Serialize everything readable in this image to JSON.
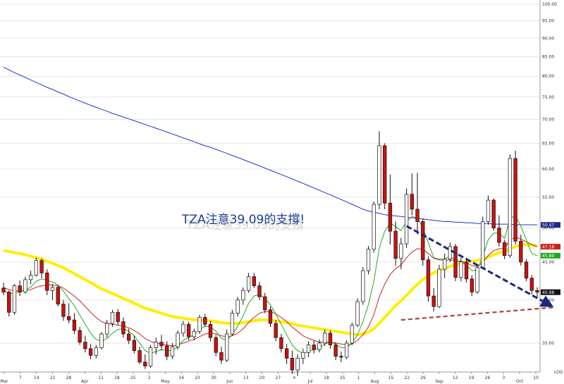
{
  "chart_data": {
    "type": "candlestick",
    "y_scale": "log",
    "ylim": [
      32,
      100
    ],
    "y_ticks": [
      "35.00",
      "40.00",
      "45.00",
      "50.00",
      "55.00",
      "60.00",
      "65.00",
      "70.00",
      "75.00",
      "80.00",
      "85.00",
      "90.00",
      "95.00",
      "100.00"
    ],
    "y_tick_values": [
      35,
      40,
      45,
      50,
      55,
      60,
      65,
      70,
      75,
      80,
      85,
      90,
      95,
      100
    ],
    "log_label": "LOG",
    "x_ticks": [
      "Mar",
      "7",
      "14",
      "21",
      "28",
      "Apr",
      "11",
      "18",
      "25",
      "2",
      "May",
      "16",
      "23",
      "30",
      "Jun",
      "13",
      "20",
      "27",
      "4",
      "Jul",
      "18",
      "25",
      "1",
      "Aug",
      "15",
      "22",
      "29",
      "Sep",
      "12",
      "19",
      "26",
      "3",
      "Oct",
      "10"
    ],
    "annotation": "TZA注意39.09的支撐!",
    "annotation_shadow": "TZA注意39.09的支撐",
    "last_value_labels": [
      {
        "value": "50.47",
        "color": "#1a2a8a"
      },
      {
        "value": "47.18",
        "color": "#cc2222"
      },
      {
        "value": "45.89",
        "color": "#22aa22"
      },
      {
        "value": "40.98",
        "color": "#111111"
      }
    ],
    "series": [
      {
        "name": "price",
        "ohlc": [
          [
            41.5,
            42.2,
            40.6,
            41.0
          ],
          [
            41.0,
            41.2,
            38.0,
            38.5
          ],
          [
            38.5,
            42.0,
            38.2,
            41.8
          ],
          [
            41.8,
            42.5,
            40.5,
            41.0
          ],
          [
            41.0,
            43.0,
            40.8,
            42.6
          ],
          [
            42.6,
            43.8,
            42.0,
            43.2
          ],
          [
            43.2,
            45.6,
            43.0,
            45.2
          ],
          [
            45.2,
            45.5,
            42.8,
            43.5
          ],
          [
            43.5,
            44.0,
            40.6,
            41.2
          ],
          [
            41.2,
            42.0,
            40.0,
            41.6
          ],
          [
            41.6,
            41.9,
            39.2,
            39.5
          ],
          [
            39.5,
            40.0,
            37.5,
            38.0
          ],
          [
            38.0,
            39.6,
            37.2,
            37.6
          ],
          [
            37.6,
            38.4,
            36.0,
            36.4
          ],
          [
            36.4,
            36.8,
            34.8,
            35.1
          ],
          [
            35.1,
            35.8,
            34.0,
            34.4
          ],
          [
            34.4,
            34.9,
            33.3,
            33.7
          ],
          [
            33.7,
            34.8,
            33.4,
            34.5
          ],
          [
            34.5,
            36.2,
            34.3,
            36.0
          ],
          [
            36.0,
            37.6,
            35.6,
            37.2
          ],
          [
            37.2,
            38.8,
            36.8,
            38.5
          ],
          [
            38.5,
            38.9,
            37.0,
            37.4
          ],
          [
            37.4,
            37.9,
            35.6,
            36.0
          ],
          [
            36.0,
            36.6,
            34.9,
            35.3
          ],
          [
            35.3,
            35.8,
            33.9,
            34.2
          ],
          [
            34.2,
            34.6,
            32.8,
            33.0
          ],
          [
            33.0,
            33.8,
            32.3,
            32.6
          ],
          [
            32.6,
            34.8,
            32.4,
            34.5
          ],
          [
            34.5,
            35.6,
            33.8,
            35.1
          ],
          [
            35.1,
            35.9,
            34.2,
            34.7
          ],
          [
            34.7,
            35.2,
            33.2,
            33.6
          ],
          [
            33.6,
            35.0,
            33.3,
            34.6
          ],
          [
            34.6,
            36.4,
            34.3,
            36.1
          ],
          [
            36.1,
            37.5,
            35.7,
            37.1
          ],
          [
            37.1,
            37.4,
            35.3,
            35.7
          ],
          [
            35.7,
            36.6,
            35.3,
            36.3
          ],
          [
            36.3,
            38.2,
            36.0,
            37.9
          ],
          [
            37.9,
            38.3,
            36.8,
            37.1
          ],
          [
            37.1,
            37.5,
            35.2,
            35.6
          ],
          [
            35.6,
            35.9,
            33.6,
            34.0
          ],
          [
            34.0,
            34.6,
            32.8,
            33.2
          ],
          [
            33.2,
            36.5,
            33.0,
            36.0
          ],
          [
            36.0,
            38.8,
            35.8,
            38.4
          ],
          [
            38.4,
            40.4,
            38.0,
            40.0
          ],
          [
            40.0,
            41.6,
            39.4,
            41.2
          ],
          [
            41.2,
            43.5,
            40.9,
            43.0
          ],
          [
            43.0,
            43.5,
            41.5,
            41.8
          ],
          [
            41.8,
            42.3,
            40.0,
            40.4
          ],
          [
            40.4,
            40.9,
            38.4,
            38.8
          ],
          [
            38.8,
            39.2,
            36.8,
            37.2
          ],
          [
            37.2,
            37.6,
            35.2,
            35.6
          ],
          [
            35.6,
            36.0,
            34.0,
            34.4
          ],
          [
            34.4,
            34.9,
            32.8,
            33.4
          ],
          [
            33.4,
            34.2,
            31.8,
            32.2
          ],
          [
            32.2,
            33.8,
            31.6,
            33.4
          ],
          [
            33.4,
            34.4,
            32.8,
            34.0
          ],
          [
            34.0,
            35.2,
            33.5,
            34.8
          ],
          [
            34.8,
            35.3,
            33.9,
            34.3
          ],
          [
            34.3,
            35.4,
            34.0,
            35.0
          ],
          [
            35.0,
            36.5,
            34.7,
            36.1
          ],
          [
            36.1,
            36.4,
            34.4,
            34.8
          ],
          [
            34.8,
            35.1,
            33.2,
            33.6
          ],
          [
            33.6,
            34.1,
            33.0,
            33.5
          ],
          [
            33.5,
            35.3,
            33.3,
            35.0
          ],
          [
            35.0,
            37.3,
            34.8,
            37.0
          ],
          [
            37.0,
            40.2,
            36.8,
            39.8
          ],
          [
            39.8,
            44.3,
            39.4,
            43.8
          ],
          [
            43.8,
            47.3,
            43.3,
            46.8
          ],
          [
            46.8,
            54.3,
            46.3,
            53.8
          ],
          [
            53.8,
            67.5,
            53.0,
            64.5
          ],
          [
            64.5,
            65.0,
            53.0,
            54.0
          ],
          [
            54.0,
            59.0,
            47.5,
            49.5
          ],
          [
            49.5,
            51.0,
            44.5,
            45.5
          ],
          [
            45.5,
            48.5,
            44.0,
            47.6
          ],
          [
            47.6,
            56.5,
            47.0,
            55.5
          ],
          [
            55.5,
            59.2,
            52.0,
            53.0
          ],
          [
            53.0,
            59.3,
            49.0,
            51.0
          ],
          [
            51.0,
            51.5,
            44.5,
            45.3
          ],
          [
            45.3,
            45.8,
            39.8,
            40.5
          ],
          [
            40.5,
            41.5,
            38.6,
            39.2
          ],
          [
            39.2,
            44.6,
            39.0,
            44.0
          ],
          [
            44.0,
            46.2,
            42.8,
            45.4
          ],
          [
            45.4,
            47.8,
            45.0,
            47.2
          ],
          [
            47.2,
            47.6,
            42.4,
            42.9
          ],
          [
            42.9,
            45.6,
            42.4,
            45.0
          ],
          [
            45.0,
            45.6,
            42.2,
            42.7
          ],
          [
            42.7,
            43.2,
            40.5,
            41.0
          ],
          [
            41.0,
            44.6,
            40.8,
            44.2
          ],
          [
            44.2,
            51.8,
            44.0,
            51.0
          ],
          [
            51.0,
            55.3,
            50.5,
            54.5
          ],
          [
            54.5,
            54.8,
            49.6,
            50.0
          ],
          [
            50.0,
            52.0,
            47.2,
            47.8
          ],
          [
            47.8,
            48.2,
            45.4,
            45.9
          ],
          [
            45.9,
            62.8,
            45.6,
            62.0
          ],
          [
            62.0,
            63.5,
            47.5,
            48.0
          ],
          [
            48.0,
            49.0,
            44.5,
            45.0
          ],
          [
            45.0,
            45.4,
            42.4,
            42.8
          ],
          [
            42.8,
            43.2,
            40.7,
            41.2
          ],
          [
            41.2,
            41.6,
            40.3,
            40.98
          ]
        ]
      },
      {
        "name": "ma_fast",
        "color": "#22aa22",
        "values": [
          41.2,
          40.8,
          40.9,
          41.0,
          41.3,
          41.6,
          42.4,
          42.7,
          42.5,
          42.3,
          41.9,
          41.1,
          40.2,
          39.3,
          38.2,
          37.1,
          36.1,
          35.4,
          35.2,
          35.5,
          36.1,
          36.5,
          36.6,
          36.3,
          35.8,
          35.0,
          34.2,
          33.9,
          34.1,
          34.3,
          34.2,
          34.2,
          34.6,
          35.3,
          35.6,
          35.9,
          36.5,
          36.9,
          36.8,
          36.3,
          35.5,
          35.3,
          35.9,
          36.9,
          38.1,
          39.6,
          40.5,
          40.7,
          40.2,
          39.4,
          38.3,
          37.1,
          35.9,
          34.8,
          34.2,
          33.9,
          34.1,
          34.3,
          34.5,
          34.9,
          35.1,
          34.9,
          34.5,
          34.5,
          35.0,
          35.9,
          37.4,
          39.4,
          42.4,
          47.0,
          49.5,
          50.8,
          50.2,
          49.6,
          51.0,
          51.8,
          51.6,
          50.0,
          47.8,
          45.6,
          45.4,
          45.4,
          45.8,
          45.2,
          45.1,
          44.6,
          43.8,
          43.9,
          45.7,
          48.2,
          49.2,
          49.2,
          48.4,
          51.5,
          51.9,
          50.3,
          48.2,
          46.2,
          45.89
        ]
      },
      {
        "name": "ma_mid",
        "color": "#cc2222",
        "values": [
          41.6,
          41.3,
          41.2,
          41.1,
          41.2,
          41.3,
          41.6,
          41.8,
          41.9,
          41.9,
          41.8,
          41.5,
          41.0,
          40.5,
          39.9,
          39.2,
          38.5,
          37.9,
          37.4,
          37.2,
          37.1,
          37.0,
          36.9,
          36.7,
          36.4,
          36.0,
          35.5,
          35.2,
          35.0,
          34.9,
          34.8,
          34.7,
          34.8,
          35.0,
          35.2,
          35.4,
          35.7,
          36.0,
          36.1,
          36.0,
          35.8,
          35.7,
          35.8,
          36.1,
          36.6,
          37.3,
          37.9,
          38.4,
          38.6,
          38.6,
          38.3,
          37.9,
          37.4,
          36.8,
          36.3,
          35.8,
          35.5,
          35.3,
          35.1,
          35.1,
          35.1,
          35.0,
          34.9,
          34.8,
          34.9,
          35.3,
          35.9,
          36.8,
          38.2,
          40.4,
          42.0,
          43.3,
          44.1,
          44.6,
          45.6,
          46.4,
          46.9,
          46.8,
          46.2,
          45.5,
          45.3,
          45.2,
          45.3,
          45.1,
          45.1,
          44.9,
          44.5,
          44.4,
          44.9,
          45.9,
          46.6,
          46.9,
          46.9,
          48.2,
          48.6,
          48.3,
          47.9,
          47.5,
          47.18
        ]
      },
      {
        "name": "ma_slow",
        "color": "#ffee00",
        "values": [
          46.6,
          46.5,
          46.3,
          46.2,
          46.0,
          45.8,
          45.6,
          45.4,
          45.1,
          44.8,
          44.5,
          44.2,
          43.8,
          43.4,
          43.0,
          42.6,
          42.2,
          41.8,
          41.4,
          41.1,
          40.8,
          40.5,
          40.2,
          39.9,
          39.6,
          39.3,
          39.0,
          38.8,
          38.6,
          38.4,
          38.2,
          38.0,
          37.9,
          37.8,
          37.7,
          37.6,
          37.6,
          37.5,
          37.5,
          37.4,
          37.3,
          37.2,
          37.2,
          37.2,
          37.3,
          37.4,
          37.5,
          37.6,
          37.6,
          37.6,
          37.5,
          37.4,
          37.3,
          37.2,
          37.0,
          36.9,
          36.8,
          36.7,
          36.6,
          36.5,
          36.4,
          36.3,
          36.2,
          36.1,
          36.0,
          35.9,
          36.0,
          36.2,
          36.6,
          37.2,
          37.9,
          38.6,
          39.3,
          39.9,
          40.6,
          41.3,
          42.0,
          42.6,
          43.1,
          43.5,
          43.8,
          44.1,
          44.4,
          44.6,
          44.8,
          45.0,
          45.1,
          45.2,
          45.4,
          45.7,
          46.0,
          46.3,
          46.5,
          46.9,
          47.2,
          47.4,
          47.5,
          47.4,
          47.3
        ]
      },
      {
        "name": "ma_long",
        "color": "#2233cc",
        "values": [
          82.3,
          81.6,
          80.9,
          80.3,
          79.7,
          79.1,
          78.5,
          77.9,
          77.3,
          76.8,
          76.2,
          75.7,
          75.1,
          74.6,
          74.1,
          73.6,
          73.1,
          72.7,
          72.2,
          71.8,
          71.3,
          70.9,
          70.5,
          70.1,
          69.7,
          69.3,
          68.9,
          68.5,
          68.1,
          67.7,
          67.3,
          66.9,
          66.5,
          66.1,
          65.7,
          65.3,
          64.9,
          64.5,
          64.2,
          63.8,
          63.4,
          63.0,
          62.6,
          62.2,
          61.8,
          61.4,
          61.0,
          60.6,
          60.2,
          59.8,
          59.4,
          59.0,
          58.6,
          58.2,
          57.8,
          57.4,
          57.0,
          56.6,
          56.2,
          55.8,
          55.4,
          55.0,
          54.6,
          54.2,
          53.8,
          53.4,
          53.0,
          52.7,
          52.5,
          52.3,
          52.1,
          52.0,
          51.9,
          51.8,
          51.7,
          51.6,
          51.5,
          51.4,
          51.3,
          51.2,
          51.1,
          51.0,
          51.0,
          50.9,
          50.9,
          50.8,
          50.8,
          50.7,
          50.7,
          50.7,
          50.6,
          50.6,
          50.6,
          50.6,
          50.5,
          50.5,
          50.5,
          50.5,
          50.47
        ]
      }
    ],
    "trendlines": [
      {
        "name": "resistance-trend",
        "color": "#1a2a7a",
        "style": "dashed-arrow",
        "from": [
          74,
          50.3
        ],
        "to": [
          100,
          39.5
        ]
      },
      {
        "name": "support-trend",
        "color": "#b04040",
        "style": "dashed",
        "from": [
          73,
          37.6
        ],
        "to": [
          101,
          39.09
        ]
      }
    ]
  }
}
